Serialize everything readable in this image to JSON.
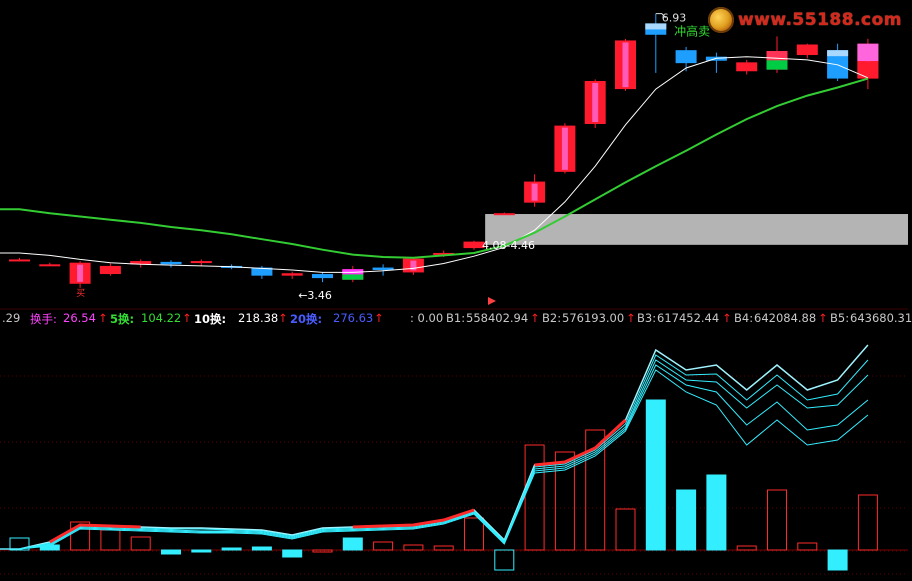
{
  "watermark": {
    "text": "www.55188.com",
    "logo_icon": "golden-circle-logo"
  },
  "price_panel": {
    "high_label": "6.93",
    "low_label": "←3.46",
    "signal_label": "冲高卖",
    "band_label": "4.08-4.46",
    "left_cut_label": "买"
  },
  "status_bar": {
    "left_value": ".29",
    "turnover": {
      "label": "换手:",
      "value": "26.54"
    },
    "t5": {
      "label": "5换:",
      "value": "104.22"
    },
    "t10": {
      "label": "10换:",
      "value": "218.38"
    },
    "t20": {
      "label": "20换:",
      "value": "276.63"
    },
    "zero": ": 0.00",
    "b1": {
      "label": "B1:",
      "value": "558402.94"
    },
    "b2": {
      "label": "B2:",
      "value": "576193.00"
    },
    "b3": {
      "label": "B3:",
      "value": "617452.44"
    },
    "b4": {
      "label": "B4:",
      "value": "642084.88"
    },
    "b5": {
      "label": "B5:",
      "value": "643680.31"
    },
    "up_arrow_icon": "red-up-arrow-icon"
  },
  "colors": {
    "background": "#000000",
    "up_candle": "#ff1a2e",
    "up_candle_inner": "#ff66cc",
    "down_candle": "#1e9fff",
    "neutral_candle": "#00cc33",
    "ma_short": "#ffffff",
    "ma_long": "#33cc33",
    "band": "#b4b4b4",
    "volume_cyan": "#33eeff",
    "volume_red": "#ff2a2a",
    "turnover_color": "#ff44ff",
    "t5_color": "#33dd33",
    "t10_color": "#ffffff",
    "t20_color": "#4a5cff"
  },
  "chart_data": [
    {
      "type": "candlestick",
      "name": "price",
      "candles": [
        {
          "o": 3.9,
          "c": 3.9,
          "h": 3.92,
          "l": 3.88,
          "dir": "flat"
        },
        {
          "o": 3.84,
          "c": 3.84,
          "h": 3.86,
          "l": 3.82,
          "dir": "flat"
        },
        {
          "o": 3.6,
          "c": 3.86,
          "h": 3.88,
          "l": 3.55,
          "dir": "up"
        },
        {
          "o": 3.72,
          "c": 3.82,
          "h": 3.85,
          "l": 3.7,
          "dir": "up"
        },
        {
          "o": 3.84,
          "c": 3.88,
          "h": 3.9,
          "l": 3.8,
          "dir": "up"
        },
        {
          "o": 3.87,
          "c": 3.84,
          "h": 3.89,
          "l": 3.8,
          "dir": "down"
        },
        {
          "o": 3.86,
          "c": 3.88,
          "h": 3.9,
          "l": 3.82,
          "dir": "up"
        },
        {
          "o": 3.82,
          "c": 3.8,
          "h": 3.84,
          "l": 3.78,
          "dir": "down"
        },
        {
          "o": 3.8,
          "c": 3.7,
          "h": 3.82,
          "l": 3.66,
          "dir": "down"
        },
        {
          "o": 3.7,
          "c": 3.73,
          "h": 3.75,
          "l": 3.66,
          "dir": "up"
        },
        {
          "o": 3.72,
          "c": 3.67,
          "h": 3.74,
          "l": 3.62,
          "dir": "down"
        },
        {
          "o": 3.65,
          "c": 3.78,
          "h": 3.82,
          "l": 3.62,
          "dir": "up"
        },
        {
          "o": 3.8,
          "c": 3.77,
          "h": 3.84,
          "l": 3.7,
          "dir": "down"
        },
        {
          "o": 3.74,
          "c": 3.91,
          "h": 3.93,
          "l": 3.71,
          "dir": "up"
        },
        {
          "o": 3.96,
          "c": 3.98,
          "h": 4.01,
          "l": 3.93,
          "dir": "up"
        },
        {
          "o": 4.04,
          "c": 4.12,
          "h": 4.13,
          "l": 4.02,
          "dir": "up"
        },
        {
          "o": 4.46,
          "c": 4.47,
          "h": 4.48,
          "l": 4.45,
          "dir": "up"
        },
        {
          "o": 4.6,
          "c": 4.86,
          "h": 4.95,
          "l": 4.55,
          "dir": "up"
        },
        {
          "o": 4.98,
          "c": 5.55,
          "h": 5.58,
          "l": 4.96,
          "dir": "up"
        },
        {
          "o": 5.57,
          "c": 6.1,
          "h": 6.12,
          "l": 5.52,
          "dir": "up"
        },
        {
          "o": 6.0,
          "c": 6.6,
          "h": 6.62,
          "l": 5.98,
          "dir": "up"
        },
        {
          "o": 6.81,
          "c": 6.67,
          "h": 6.93,
          "l": 6.2,
          "dir": "down"
        },
        {
          "o": 6.48,
          "c": 6.32,
          "h": 6.52,
          "l": 6.22,
          "dir": "down"
        },
        {
          "o": 6.4,
          "c": 6.35,
          "h": 6.45,
          "l": 6.2,
          "dir": "down"
        },
        {
          "o": 6.22,
          "c": 6.33,
          "h": 6.36,
          "l": 6.18,
          "dir": "up"
        },
        {
          "o": 6.24,
          "c": 6.47,
          "h": 6.65,
          "l": 6.2,
          "dir": "up"
        },
        {
          "o": 6.55,
          "c": 6.42,
          "h": 6.56,
          "l": 6.38,
          "dir": "up"
        },
        {
          "o": 6.48,
          "c": 6.13,
          "h": 6.56,
          "l": 6.1,
          "dir": "down"
        },
        {
          "o": 6.13,
          "c": 6.56,
          "h": 6.62,
          "l": 6.0,
          "dir": "up"
        }
      ],
      "ma_short": [
        3.98,
        3.95,
        3.9,
        3.86,
        3.84,
        3.83,
        3.82,
        3.81,
        3.79,
        3.77,
        3.74,
        3.74,
        3.76,
        3.79,
        3.85,
        3.94,
        4.05,
        4.26,
        4.61,
        5.05,
        5.56,
        6.0,
        6.26,
        6.38,
        6.4,
        6.38,
        6.36,
        6.3,
        6.14
      ],
      "ma_long": [
        4.52,
        4.47,
        4.43,
        4.39,
        4.35,
        4.3,
        4.26,
        4.21,
        4.15,
        4.09,
        4.02,
        3.96,
        3.93,
        3.92,
        3.95,
        3.98,
        4.07,
        4.23,
        4.43,
        4.64,
        4.85,
        5.05,
        5.24,
        5.44,
        5.63,
        5.79,
        5.92,
        6.02,
        6.13
      ],
      "band": [
        4.08,
        4.46
      ],
      "y_range": [
        3.4,
        7.0
      ]
    },
    {
      "type": "bar",
      "name": "turnover",
      "values": [
        1.2,
        0.5,
        2.8,
        2.0,
        1.3,
        -0.4,
        -0.2,
        0.2,
        0.3,
        -0.7,
        -0.2,
        1.2,
        0.8,
        0.5,
        0.4,
        3.2,
        -2.0,
        10.5,
        9.8,
        12.0,
        4.1,
        15.0,
        6.0,
        7.5,
        0.4,
        6.0,
        0.7,
        -2.0,
        5.5
      ],
      "styles": [
        "hollow-cyan",
        "cyan",
        "hollow-red",
        "hollow-red",
        "hollow-red",
        "cyan",
        "cyan",
        "cyan",
        "cyan",
        "cyan",
        "hollow-red",
        "cyan",
        "hollow-red",
        "hollow-red",
        "hollow-red",
        "hollow-red",
        "hollow-cyan",
        "hollow-red",
        "hollow-red",
        "hollow-red",
        "hollow-red",
        "cyan",
        "cyan",
        "cyan",
        "hollow-red",
        "hollow-red",
        "hollow-red",
        "cyan",
        "hollow-red"
      ],
      "lines": [
        [
          0.1,
          0.8,
          2.5,
          2.4,
          2.3,
          2.2,
          2.2,
          2.1,
          2.0,
          1.5,
          2.2,
          2.3,
          2.4,
          2.5,
          3.0,
          4.0,
          1.0,
          8.5,
          8.8,
          10.2,
          13.0,
          20.0,
          18.0,
          18.5,
          16.0,
          18.5,
          16.0,
          17.0,
          20.5
        ],
        [
          0.1,
          0.7,
          2.4,
          2.3,
          2.2,
          2.1,
          2.1,
          2.0,
          1.9,
          1.4,
          2.1,
          2.2,
          2.3,
          2.4,
          2.9,
          3.9,
          0.9,
          8.3,
          8.6,
          10.0,
          12.6,
          19.5,
          17.5,
          17.6,
          15.0,
          17.5,
          15.0,
          15.6,
          19.0
        ],
        [
          0.1,
          0.6,
          2.3,
          2.2,
          2.1,
          2.0,
          1.9,
          1.9,
          1.8,
          1.3,
          2.0,
          2.1,
          2.2,
          2.3,
          2.8,
          3.8,
          0.8,
          8.1,
          8.4,
          9.8,
          12.3,
          19.0,
          17.0,
          16.8,
          14.2,
          16.5,
          14.2,
          14.5,
          17.5
        ],
        [
          0.1,
          0.5,
          2.2,
          2.1,
          2.0,
          1.9,
          1.8,
          1.8,
          1.7,
          1.2,
          1.9,
          2.0,
          2.1,
          2.2,
          2.7,
          3.7,
          0.7,
          7.9,
          8.2,
          9.6,
          12.1,
          18.5,
          16.5,
          15.8,
          12.5,
          14.8,
          12.0,
          12.5,
          15.0
        ],
        [
          0.1,
          0.4,
          2.1,
          2.0,
          1.9,
          1.8,
          1.7,
          1.7,
          1.6,
          1.1,
          1.8,
          1.9,
          2.0,
          2.1,
          2.6,
          3.6,
          0.6,
          7.7,
          8.0,
          9.4,
          11.9,
          18.0,
          15.8,
          14.5,
          10.5,
          13.0,
          10.5,
          11.0,
          13.5
        ]
      ],
      "red_segments": [
        [
          1,
          4
        ],
        [
          11,
          15
        ],
        [
          17,
          20
        ]
      ],
      "y_range": [
        -2.5,
        22.0
      ]
    }
  ]
}
